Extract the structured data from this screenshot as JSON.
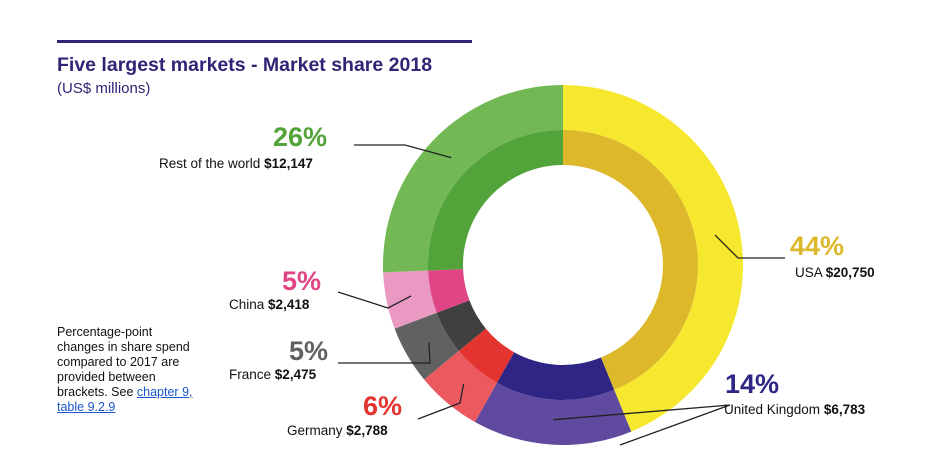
{
  "colors": {
    "title": "#2e2575",
    "usa_outer": "#f6e82e",
    "usa_inner": "#dcb82a",
    "uk_outer": "#5f4aa0",
    "uk_inner": "#2e2585",
    "germany_outer": "#ec5a5f",
    "germany_inner": "#e3342f",
    "france_outer": "#616161",
    "france_inner": "#404040",
    "china_outer": "#ea9ac2",
    "china_inner": "#e04585",
    "row_outer": "#72b955",
    "row_inner": "#52a33a",
    "link": "#1a56c9"
  },
  "chart_data": {
    "type": "pie",
    "variant": "donut",
    "title": "Five largest markets - Market share 2018",
    "subtitle": "(US$ millions)",
    "unit": "US$ millions",
    "slices": [
      {
        "key": "usa",
        "name": "USA",
        "value": 20750,
        "value_label": "$20,750",
        "share_label": "44%",
        "outer": "#f6e82e",
        "inner": "#dcb82a",
        "pct_color": "#dcb82a"
      },
      {
        "key": "uk",
        "name": "United Kingdom",
        "value": 6783,
        "value_label": "$6,783",
        "share_label": "14%",
        "outer": "#5f4aa0",
        "inner": "#2e2585",
        "pct_color": "#2e2585"
      },
      {
        "key": "germany",
        "name": "Germany",
        "value": 2788,
        "value_label": "$2,788",
        "share_label": "6%",
        "outer": "#ec5a5f",
        "inner": "#e3342f",
        "pct_color": "#e3342f"
      },
      {
        "key": "france",
        "name": "France",
        "value": 2475,
        "value_label": "$2,475",
        "share_label": "5%",
        "outer": "#616161",
        "inner": "#404040",
        "pct_color": "#616161"
      },
      {
        "key": "china",
        "name": "China",
        "value": 2418,
        "value_label": "$2,418",
        "share_label": "5%",
        "outer": "#ea9ac2",
        "inner": "#e04585",
        "pct_color": "#e04585"
      },
      {
        "key": "row",
        "name": "Rest of the world",
        "value": 12147,
        "value_label": "$12,147",
        "share_label": "26%",
        "outer": "#72b955",
        "inner": "#52a33a",
        "pct_color": "#52a33a"
      }
    ]
  },
  "note": {
    "text": "Percentage-point changes in share spend compared to 2017 are provided between brackets. See ",
    "link": "chapter 9, table 9.2.9"
  }
}
